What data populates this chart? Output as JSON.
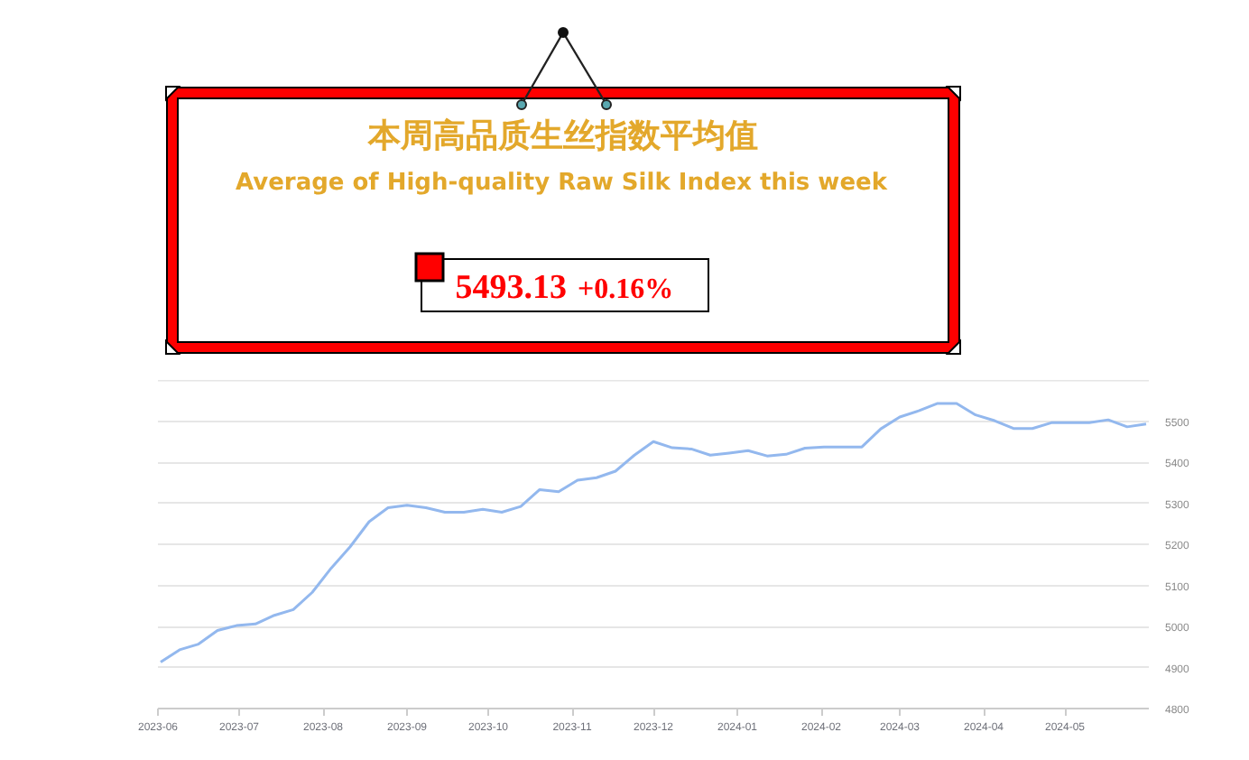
{
  "chart_data": {
    "type": "line",
    "title": "本周高品质生丝指数平均值",
    "subtitle": "Average of High-quality Raw Silk Index this week",
    "annotations": [
      "5493.13",
      "+0.16%"
    ],
    "x": [
      "2023-06-02",
      "2023-06-09",
      "2023-06-16",
      "2023-06-23",
      "2023-06-30",
      "2023-07-07",
      "2023-07-14",
      "2023-07-21",
      "2023-07-28",
      "2023-08-04",
      "2023-08-11",
      "2023-08-18",
      "2023-08-25",
      "2023-09-01",
      "2023-09-08",
      "2023-09-15",
      "2023-09-22",
      "2023-09-29",
      "2023-10-06",
      "2023-10-13",
      "2023-10-20",
      "2023-10-27",
      "2023-11-03",
      "2023-11-10",
      "2023-11-17",
      "2023-11-24",
      "2023-12-01",
      "2023-12-08",
      "2023-12-15",
      "2023-12-22",
      "2023-12-29",
      "2024-01-05",
      "2024-01-12",
      "2024-01-19",
      "2024-01-26",
      "2024-02-02",
      "2024-02-09",
      "2024-02-16",
      "2024-02-23",
      "2024-03-01",
      "2024-03-08",
      "2024-03-15",
      "2024-03-22",
      "2024-03-29",
      "2024-04-05",
      "2024-04-12",
      "2024-04-19",
      "2024-04-26",
      "2024-05-03",
      "2024-05-10",
      "2024-05-17",
      "2024-05-24",
      "2024-05-31"
    ],
    "series": [
      {
        "color": "#93b8ee",
        "values": [
          4913,
          4943,
          4957,
          4990,
          5002,
          5006,
          5027,
          5041,
          5083,
          5142,
          5194,
          5255,
          5289,
          5295,
          5289,
          5278,
          5278,
          5285,
          5278,
          5292,
          5333,
          5328,
          5356,
          5362,
          5378,
          5417,
          5450,
          5435,
          5432,
          5417,
          5422,
          5428,
          5415,
          5419,
          5434,
          5437,
          5437,
          5437,
          5481,
          5510,
          5525,
          5543,
          5543,
          5515,
          5501,
          5482,
          5482,
          5496,
          5496,
          5496,
          5503,
          5486,
          5493
        ]
      }
    ],
    "xlim": [
      "2023-06-01",
      "2024-06-01"
    ],
    "xticks": [
      "2023-06",
      "2023-07",
      "2023-08",
      "2023-09",
      "2023-10",
      "2023-11",
      "2023-12",
      "2024-01",
      "2024-02",
      "2024-03",
      "2024-04",
      "2024-05"
    ],
    "ylim": [
      4800,
      5600
    ],
    "yticks": [
      4800,
      4900,
      5000,
      5100,
      5200,
      5300,
      5400,
      5500,
      {
        "value": 5600,
        "label": null
      }
    ],
    "grid": "y"
  }
}
